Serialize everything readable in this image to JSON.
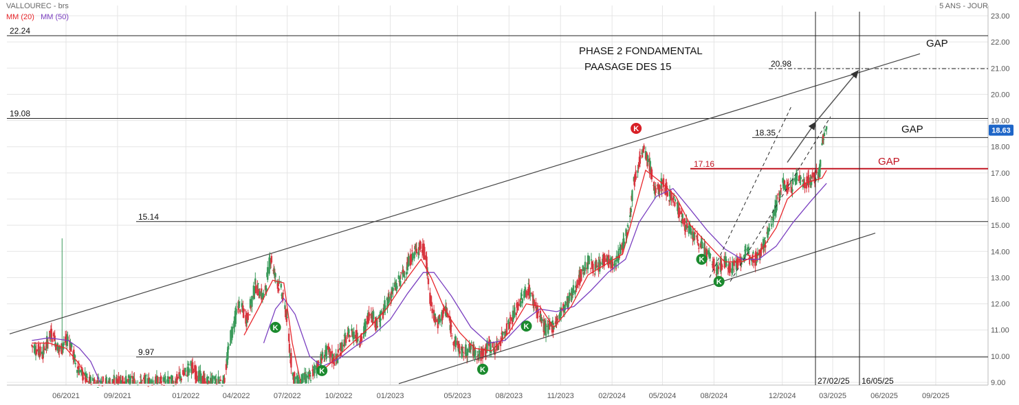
{
  "header": {
    "title": "VALLOUREC - brs",
    "period": "5 ANS - JOUR",
    "ma20_label": "MM (20)",
    "ma50_label": "MM (50)"
  },
  "colors": {
    "up": "#3a9a5a",
    "down": "#d8343e",
    "ma20": "#e8262b",
    "ma50": "#7a3fc0",
    "grid": "#e5e5e5",
    "price_badge": "#1e66c8",
    "k_green": "#1b8a2e",
    "k_red": "#d81f26"
  },
  "chart_data": {
    "type": "candlestick",
    "title": "VALLOUREC - brs",
    "x_tick_labels": [
      "06/2021",
      "09/2021",
      "01/2022",
      "04/2022",
      "07/2022",
      "10/2022",
      "01/2023",
      "05/2023",
      "08/2023",
      "11/2023",
      "02/2024",
      "05/2024",
      "08/2024",
      "12/2024",
      "03/2025",
      "06/2025",
      "09/2025"
    ],
    "y_ticks": [
      9.0,
      10.0,
      11.0,
      12.0,
      13.0,
      14.0,
      15.0,
      16.0,
      17.0,
      18.0,
      19.0,
      20.0,
      21.0,
      22.0,
      23.0
    ],
    "ylim": [
      8.95,
      23.3
    ],
    "grid": true,
    "last_price": "18.63",
    "price_anchors": [
      [
        "2021-04-01",
        10.4
      ],
      [
        "2021-04-20",
        10.1
      ],
      [
        "2021-05-05",
        10.9
      ],
      [
        "2021-05-20",
        10.2
      ],
      [
        "2021-06-05",
        10.7
      ],
      [
        "2021-06-20",
        9.6
      ],
      [
        "2021-07-10",
        9.0
      ],
      [
        "2021-12-10",
        9.0
      ],
      [
        "2021-12-28",
        9.3
      ],
      [
        "2022-01-10",
        9.6
      ],
      [
        "2022-01-25",
        9.2
      ],
      [
        "2022-02-05",
        9.0
      ],
      [
        "2022-03-10",
        9.0
      ],
      [
        "2022-03-20",
        10.6
      ],
      [
        "2022-04-05",
        12.0
      ],
      [
        "2022-04-20",
        11.4
      ],
      [
        "2022-05-05",
        12.7
      ],
      [
        "2022-05-20",
        12.2
      ],
      [
        "2022-06-01",
        13.8
      ],
      [
        "2022-06-10",
        13.0
      ],
      [
        "2022-06-20",
        12.5
      ],
      [
        "2022-06-30",
        11.5
      ],
      [
        "2022-07-05",
        10.2
      ],
      [
        "2022-07-12",
        9.2
      ],
      [
        "2022-07-20",
        9.0
      ],
      [
        "2022-08-10",
        9.2
      ],
      [
        "2022-08-25",
        9.7
      ],
      [
        "2022-09-10",
        10.2
      ],
      [
        "2022-09-25",
        9.8
      ],
      [
        "2022-10-10",
        10.6
      ],
      [
        "2022-10-25",
        10.9
      ],
      [
        "2022-11-10",
        10.6
      ],
      [
        "2022-11-25",
        11.7
      ],
      [
        "2022-12-10",
        11.2
      ],
      [
        "2022-12-28",
        12.2
      ],
      [
        "2023-01-15",
        12.8
      ],
      [
        "2023-01-30",
        13.4
      ],
      [
        "2023-02-10",
        13.9
      ],
      [
        "2023-02-22",
        14.2
      ],
      [
        "2023-03-05",
        13.9
      ],
      [
        "2023-03-12",
        12.2
      ],
      [
        "2023-03-25",
        11.2
      ],
      [
        "2023-04-10",
        11.8
      ],
      [
        "2023-04-25",
        10.6
      ],
      [
        "2023-05-10",
        10.1
      ],
      [
        "2023-05-25",
        10.3
      ],
      [
        "2023-06-10",
        10.0
      ],
      [
        "2023-06-25",
        10.4
      ],
      [
        "2023-07-10",
        10.3
      ],
      [
        "2023-07-25",
        11.0
      ],
      [
        "2023-08-10",
        11.6
      ],
      [
        "2023-08-25",
        12.3
      ],
      [
        "2023-09-05",
        12.6
      ],
      [
        "2023-09-15",
        12.0
      ],
      [
        "2023-09-25",
        11.5
      ],
      [
        "2023-10-05",
        11.0
      ],
      [
        "2023-10-20",
        11.2
      ],
      [
        "2023-11-05",
        11.8
      ],
      [
        "2023-11-20",
        12.3
      ],
      [
        "2023-12-05",
        13.0
      ],
      [
        "2023-12-20",
        13.6
      ],
      [
        "2024-01-05",
        13.3
      ],
      [
        "2024-01-20",
        13.8
      ],
      [
        "2024-02-05",
        13.4
      ],
      [
        "2024-02-20",
        14.3
      ],
      [
        "2024-03-01",
        15.0
      ],
      [
        "2024-03-10",
        16.6
      ],
      [
        "2024-03-20",
        17.5
      ],
      [
        "2024-03-28",
        17.8
      ],
      [
        "2024-04-08",
        17.3
      ],
      [
        "2024-04-18",
        16.2
      ],
      [
        "2024-05-01",
        16.6
      ],
      [
        "2024-05-12",
        16.2
      ],
      [
        "2024-05-22",
        16.0
      ],
      [
        "2024-06-05",
        15.2
      ],
      [
        "2024-06-18",
        14.8
      ],
      [
        "2024-07-01",
        14.4
      ],
      [
        "2024-07-12",
        14.2
      ],
      [
        "2024-07-22",
        13.8
      ],
      [
        "2024-08-05",
        13.3
      ],
      [
        "2024-08-18",
        13.6
      ],
      [
        "2024-09-01",
        13.4
      ],
      [
        "2024-09-15",
        13.6
      ],
      [
        "2024-10-01",
        14.0
      ],
      [
        "2024-10-15",
        13.7
      ],
      [
        "2024-11-01",
        14.4
      ],
      [
        "2024-11-15",
        15.4
      ],
      [
        "2024-12-01",
        16.6
      ],
      [
        "2024-12-15",
        16.4
      ],
      [
        "2024-12-28",
        16.9
      ],
      [
        "2025-01-10",
        16.6
      ],
      [
        "2025-01-25",
        16.8
      ],
      [
        "2025-02-05",
        17.0
      ],
      [
        "2025-02-10",
        18.1
      ],
      [
        "2025-02-14",
        18.5
      ],
      [
        "2025-02-18",
        18.63
      ]
    ],
    "ma20_anchors": [
      [
        "2021-04-01",
        10.5
      ],
      [
        "2021-05-01",
        10.5
      ],
      [
        "2021-06-01",
        10.3
      ],
      [
        "2021-06-25",
        9.7
      ],
      [
        "2021-07-10",
        9.0
      ],
      [
        "2022-03-25",
        9.0
      ],
      [
        "2022-04-15",
        10.8
      ],
      [
        "2022-05-10",
        11.8
      ],
      [
        "2022-06-05",
        12.9
      ],
      [
        "2022-06-25",
        12.8
      ],
      [
        "2022-07-10",
        10.5
      ],
      [
        "2022-07-25",
        9.0
      ],
      [
        "2022-08-25",
        9.3
      ],
      [
        "2022-09-25",
        9.9
      ],
      [
        "2022-10-25",
        10.5
      ],
      [
        "2022-11-25",
        11.1
      ],
      [
        "2022-12-25",
        11.8
      ],
      [
        "2023-01-25",
        12.8
      ],
      [
        "2023-02-25",
        13.7
      ],
      [
        "2023-03-15",
        13.0
      ],
      [
        "2023-04-10",
        11.7
      ],
      [
        "2023-05-05",
        10.9
      ],
      [
        "2023-06-01",
        10.3
      ],
      [
        "2023-07-01",
        10.2
      ],
      [
        "2023-08-01",
        10.9
      ],
      [
        "2023-09-01",
        12.0
      ],
      [
        "2023-09-25",
        11.9
      ],
      [
        "2023-10-20",
        11.1
      ],
      [
        "2023-11-20",
        11.9
      ],
      [
        "2023-12-20",
        13.1
      ],
      [
        "2024-01-20",
        13.5
      ],
      [
        "2024-02-20",
        13.9
      ],
      [
        "2024-03-10",
        15.4
      ],
      [
        "2024-04-01",
        17.1
      ],
      [
        "2024-04-25",
        16.7
      ],
      [
        "2024-05-25",
        16.1
      ],
      [
        "2024-06-20",
        15.0
      ],
      [
        "2024-07-20",
        14.3
      ],
      [
        "2024-08-20",
        13.6
      ],
      [
        "2024-09-20",
        13.6
      ],
      [
        "2024-10-20",
        13.9
      ],
      [
        "2024-11-20",
        14.9
      ],
      [
        "2024-12-10",
        16.0
      ],
      [
        "2025-01-10",
        16.6
      ],
      [
        "2025-02-10",
        16.8
      ],
      [
        "2025-02-18",
        17.1
      ]
    ],
    "ma50_anchors": [
      [
        "2021-04-01",
        10.6
      ],
      [
        "2021-05-01",
        10.7
      ],
      [
        "2021-06-05",
        10.6
      ],
      [
        "2021-06-25",
        10.3
      ],
      [
        "2021-07-15",
        9.8
      ],
      [
        "2021-08-01",
        9.0
      ],
      [
        "2022-04-25",
        9.0
      ],
      [
        "2022-05-20",
        10.5
      ],
      [
        "2022-06-10",
        11.8
      ],
      [
        "2022-06-25",
        12.2
      ],
      [
        "2022-07-15",
        11.6
      ],
      [
        "2022-08-10",
        10.0
      ],
      [
        "2022-09-01",
        9.6
      ],
      [
        "2022-10-01",
        9.9
      ],
      [
        "2022-11-01",
        10.4
      ],
      [
        "2022-12-01",
        10.8
      ],
      [
        "2023-01-01",
        11.4
      ],
      [
        "2023-02-01",
        12.4
      ],
      [
        "2023-03-01",
        13.2
      ],
      [
        "2023-03-20",
        13.2
      ],
      [
        "2023-04-20",
        12.3
      ],
      [
        "2023-05-25",
        11.1
      ],
      [
        "2023-06-25",
        10.5
      ],
      [
        "2023-07-25",
        10.6
      ],
      [
        "2023-08-25",
        11.3
      ],
      [
        "2023-09-25",
        11.8
      ],
      [
        "2023-10-25",
        11.7
      ],
      [
        "2023-11-25",
        11.9
      ],
      [
        "2023-12-25",
        12.5
      ],
      [
        "2024-01-25",
        13.2
      ],
      [
        "2024-02-25",
        13.7
      ],
      [
        "2024-03-20",
        15.1
      ],
      [
        "2024-04-20",
        16.1
      ],
      [
        "2024-05-20",
        16.4
      ],
      [
        "2024-06-20",
        15.6
      ],
      [
        "2024-07-20",
        14.8
      ],
      [
        "2024-08-20",
        14.1
      ],
      [
        "2024-09-20",
        13.7
      ],
      [
        "2024-10-20",
        13.7
      ],
      [
        "2024-11-20",
        14.2
      ],
      [
        "2024-12-20",
        15.1
      ],
      [
        "2025-01-20",
        15.9
      ],
      [
        "2025-02-18",
        16.6
      ]
    ],
    "outlier_wicks": [
      [
        "2021-05-25",
        10.3,
        14.5
      ]
    ],
    "annotations": {
      "text_phase": "PHASE 2 FONDAMENTAL",
      "text_passage": "PAASAGE DES 15",
      "gap_top": "GAP",
      "gap_mid": "GAP",
      "gap_red": "GAP",
      "level_2224": "22.24",
      "level_1908": "19.08",
      "level_1514": "15.14",
      "level_997": "9.97",
      "level_2098": "20.98",
      "level_1835": "18.35",
      "level_1716": "17.16",
      "vline1_label": "27/02/25",
      "vline2_label": "16/05/25",
      "k_markers": [
        {
          "date": "2022-06-10",
          "value": 11.1,
          "color": "green",
          "text": "K"
        },
        {
          "date": "2022-09-01",
          "value": 9.45,
          "color": "green",
          "text": "K"
        },
        {
          "date": "2023-06-15",
          "value": 9.5,
          "color": "green",
          "text": "K"
        },
        {
          "date": "2023-09-01",
          "value": 11.15,
          "color": "green",
          "text": "K"
        },
        {
          "date": "2024-03-15",
          "value": 18.7,
          "color": "red",
          "text": "K"
        },
        {
          "date": "2024-07-10",
          "value": 13.7,
          "color": "green",
          "text": "K"
        },
        {
          "date": "2024-08-10",
          "value": 12.85,
          "color": "green",
          "text": "K"
        }
      ]
    }
  }
}
